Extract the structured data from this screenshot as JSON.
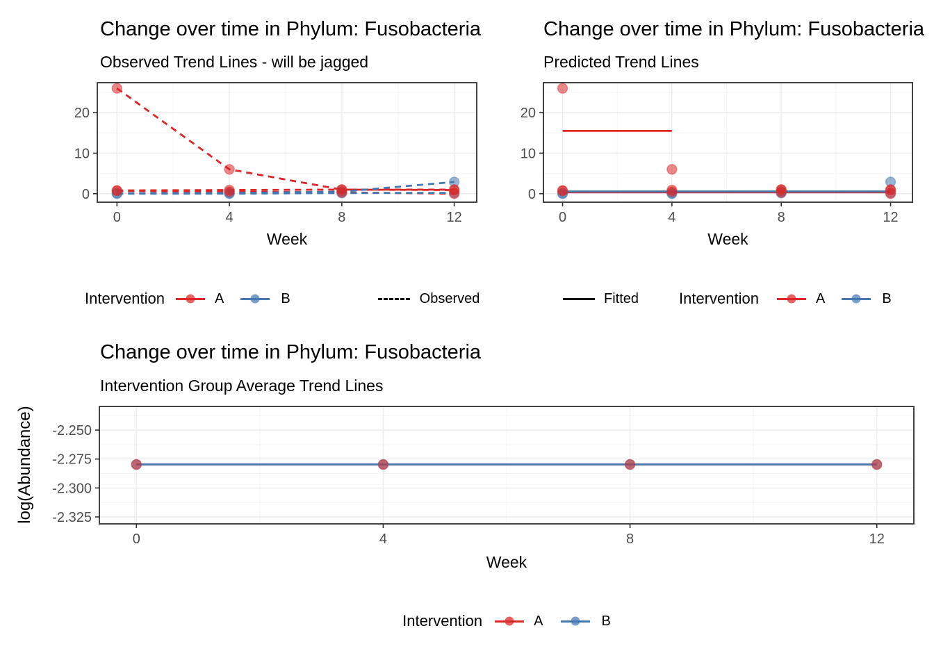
{
  "colors": {
    "red": "#DB2727",
    "blue": "#4478B1",
    "linetype_key": "#111111",
    "tick_label": "#4D4D4D",
    "grid_major": "#EBEBEB",
    "grid_minor": "#F4F4F4",
    "panel_border": "#2F2F2F",
    "title_text": "#000000",
    "background": "#FFFFFF"
  },
  "legends": {
    "observed": {
      "title": "Intervention",
      "entry_a": "A",
      "entry_b": "B",
      "linetype_label": "Observed"
    },
    "predicted": {
      "linetype_label": "Fitted",
      "title": "Intervention",
      "entry_a": "A",
      "entry_b": "B"
    },
    "average": {
      "title": "Intervention",
      "entry_a": "A",
      "entry_b": "B"
    }
  },
  "chart_data": [
    {
      "id": "observed-trends",
      "type": "line",
      "title": "Change over time in Phylum: Fusobacteria",
      "subtitle": "Observed Trend Lines - will be jagged",
      "xlabel": "Week",
      "ylabel": "",
      "x": [
        0,
        4,
        8,
        12
      ],
      "xlim": [
        -0.7,
        12.8
      ],
      "ylim": [
        -2.1,
        27.4
      ],
      "xticks": [
        0,
        4,
        8,
        12
      ],
      "xtick_labels": [
        "0",
        "4",
        "8",
        "12"
      ],
      "yticks": [
        0,
        10,
        20
      ],
      "ytick_labels": [
        "0",
        "10",
        "20"
      ],
      "xminor": [
        2,
        6,
        10
      ],
      "yminor": [
        5,
        15,
        25
      ],
      "linetype": "dashed",
      "grid": true,
      "legend_position": "bottom",
      "series": [
        {
          "name": "intervention-A-subject-1",
          "group": "A",
          "color": "red",
          "values": [
            26,
            6,
            1,
            0.9
          ]
        },
        {
          "name": "intervention-A-subject-2",
          "group": "A",
          "color": "red",
          "values": [
            0.8,
            0.9,
            1,
            1
          ]
        },
        {
          "name": "intervention-A-subject-3",
          "group": "A",
          "color": "red",
          "values": [
            0.7,
            0.5,
            0.3,
            0
          ]
        },
        {
          "name": "intervention-B-subject-1",
          "group": "B",
          "color": "blue",
          "values": [
            0.1,
            0.15,
            0.5,
            2.9
          ]
        },
        {
          "name": "intervention-B-subject-2",
          "group": "B",
          "color": "blue",
          "values": [
            0,
            0,
            0.15,
            0.2
          ]
        }
      ]
    },
    {
      "id": "predicted-trends",
      "type": "line",
      "title": "Change over time in Phylum: Fusobacteria",
      "subtitle": "Predicted Trend Lines",
      "xlabel": "Week",
      "ylabel": "",
      "x": [
        0,
        4,
        8,
        12
      ],
      "xlim": [
        -0.7,
        12.8
      ],
      "ylim": [
        -2.1,
        27.4
      ],
      "xticks": [
        0,
        4,
        8,
        12
      ],
      "xtick_labels": [
        "0",
        "4",
        "8",
        "12"
      ],
      "yticks": [
        0,
        10,
        20
      ],
      "ytick_labels": [
        "0",
        "10",
        "20"
      ],
      "xminor": [
        2,
        6,
        10
      ],
      "yminor": [
        5,
        15,
        25
      ],
      "linetype": "solid",
      "grid": true,
      "legend_position": "bottom",
      "series": [
        {
          "name": "fitted-A-high",
          "group": "A",
          "color": "red",
          "x": [
            0,
            4
          ],
          "values": [
            15.5,
            15.5
          ],
          "points": false
        },
        {
          "name": "fitted-A-low",
          "group": "A",
          "color": "red",
          "x": [
            0,
            12
          ],
          "values": [
            0.35,
            0.35
          ],
          "points": false
        },
        {
          "name": "fitted-B",
          "group": "B",
          "color": "blue",
          "x": [
            0,
            12
          ],
          "values": [
            0.55,
            0.55
          ],
          "points": false
        },
        {
          "name": "observed-A-subject-1",
          "group": "A",
          "color": "red",
          "values": [
            26,
            6,
            1,
            0.9
          ],
          "line": false
        },
        {
          "name": "observed-A-subject-2",
          "group": "A",
          "color": "red",
          "values": [
            0.8,
            0.9,
            1,
            1
          ],
          "line": false
        },
        {
          "name": "observed-A-subject-3",
          "group": "A",
          "color": "red",
          "values": [
            0.7,
            0.5,
            0.3,
            0
          ],
          "line": false
        },
        {
          "name": "observed-B-subject-1",
          "group": "B",
          "color": "blue",
          "values": [
            0.1,
            0.15,
            0.5,
            2.9
          ],
          "line": false
        },
        {
          "name": "observed-B-subject-2",
          "group": "B",
          "color": "blue",
          "values": [
            0,
            0,
            0.15,
            0.2
          ],
          "line": false
        }
      ]
    },
    {
      "id": "group-average-trends",
      "type": "line",
      "title": "Change over time in Phylum: Fusobacteria",
      "subtitle": "Intervention Group Average Trend Lines",
      "xlabel": "Week",
      "ylabel": "log(Abundance)",
      "x": [
        0,
        4,
        8,
        12
      ],
      "xlim": [
        -0.6,
        12.6
      ],
      "ylim": [
        -2.331,
        -2.2296
      ],
      "xticks": [
        0,
        4,
        8,
        12
      ],
      "xtick_labels": [
        "0",
        "4",
        "8",
        "12"
      ],
      "yticks": [
        -2.25,
        -2.275,
        -2.3,
        -2.325
      ],
      "ytick_labels": [
        "-2.250",
        "-2.275",
        "-2.300",
        "-2.325"
      ],
      "xminor": [
        2,
        6,
        10
      ],
      "yminor": [
        -2.2375,
        -2.2625,
        -2.2875,
        -2.3125
      ],
      "linetype": "solid",
      "grid": true,
      "legend_position": "bottom",
      "series": [
        {
          "name": "intervention-A-average",
          "group": "A",
          "color": "red",
          "values": [
            -2.2797,
            -2.2797,
            -2.2797,
            -2.2797
          ]
        },
        {
          "name": "intervention-B-average",
          "group": "B",
          "color": "blue",
          "values": [
            -2.2797,
            -2.2797,
            -2.2797,
            -2.2797
          ]
        }
      ]
    }
  ]
}
